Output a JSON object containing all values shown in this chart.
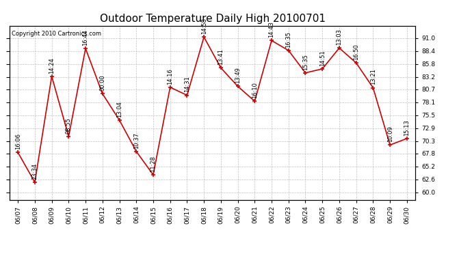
{
  "title": "Outdoor Temperature Daily High 20100701",
  "copyright": "Copyright 2010 Cartronics.com",
  "x_labels": [
    "06/07",
    "06/08",
    "06/09",
    "06/10",
    "06/11",
    "06/12",
    "06/13",
    "06/14",
    "06/15",
    "06/16",
    "06/17",
    "06/18",
    "06/19",
    "06/20",
    "06/21",
    "06/22",
    "06/23",
    "06/24",
    "06/25",
    "06/26",
    "06/27",
    "06/28",
    "06/29",
    "06/30"
  ],
  "y_values": [
    68.0,
    62.0,
    83.3,
    71.2,
    88.9,
    79.8,
    74.5,
    68.2,
    63.5,
    81.1,
    79.5,
    91.2,
    85.0,
    81.3,
    78.3,
    90.5,
    88.5,
    84.0,
    84.8,
    89.0,
    86.0,
    81.0,
    69.5,
    70.8
  ],
  "time_labels": [
    "16:06",
    "23:34",
    "14:24",
    "08:55",
    "16:44",
    "00:00",
    "13:04",
    "10:37",
    "11:28",
    "14:16",
    "14:31",
    "14:58",
    "13:41",
    "13:49",
    "16:10",
    "14:43",
    "16:35",
    "15:35",
    "14:51",
    "13:03",
    "16:50",
    "13:21",
    "10:09",
    "15:13"
  ],
  "y_ticks": [
    60.0,
    62.6,
    65.2,
    67.8,
    70.3,
    72.9,
    75.5,
    78.1,
    80.7,
    83.2,
    85.8,
    88.4,
    91.0
  ],
  "line_color": "#cc0000",
  "marker_color": "#cc0000",
  "bg_color": "#ffffff",
  "grid_color": "#b0b0b0",
  "title_fontsize": 11,
  "copyright_fontsize": 6,
  "tick_label_fontsize": 6.5,
  "annot_fontsize": 6
}
